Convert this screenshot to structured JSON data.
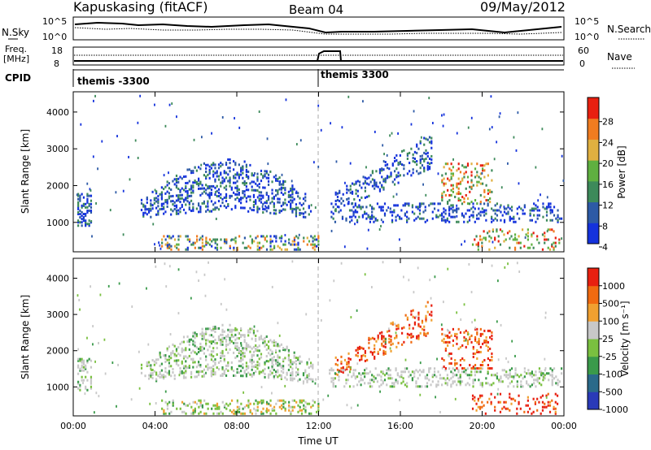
{
  "header": {
    "title": "Kapuskasing (fitACF)",
    "beam": "Beam 04",
    "date": "09/May/2012"
  },
  "status_panels": {
    "nsky_label": "N.Sky",
    "nsearch_label": "N.Search",
    "freq_label_1": "Freq.",
    "freq_label_2": "[MHz]",
    "nave_label": "Nave",
    "cpid_label": "CPID",
    "noise_left_ticks": [
      "10^5",
      "10^0"
    ],
    "noise_right_ticks": [
      "10^5",
      "10^0"
    ],
    "freq_left_ticks": [
      "18",
      "8"
    ],
    "nave_right_ticks": [
      "60",
      "0"
    ],
    "cpid_segments": [
      {
        "label": "themis -3300",
        "start_hour": 0.0
      },
      {
        "label": "themis 3300",
        "start_hour": 12.0
      }
    ]
  },
  "chart_data": [
    {
      "type": "heatmap",
      "title": "Power",
      "ylabel": "Slant Range [km]",
      "xlabel": "Time UT",
      "xlim_hours": [
        0,
        24
      ],
      "ylim": [
        200,
        4550
      ],
      "x_tick_labels": [
        "00:00",
        "04:00",
        "08:00",
        "12:00",
        "16:00",
        "20:00",
        "00:00"
      ],
      "y_tick_labels": [
        "1000",
        "2000",
        "3000",
        "4000"
      ],
      "colorbar_label": "Power [dB]",
      "colorbar_ticks": [
        "28",
        "24",
        "20",
        "16",
        "12",
        "8",
        "4"
      ],
      "colors": [
        "#1432dc",
        "#2d5aa6",
        "#3d8a5a",
        "#5fb040",
        "#e0b040",
        "#f07c20",
        "#e82010"
      ]
    },
    {
      "type": "heatmap",
      "title": "Velocity",
      "ylabel": "Slant Range [km]",
      "xlabel": "Time UT",
      "xlim_hours": [
        0,
        24
      ],
      "ylim": [
        200,
        4550
      ],
      "x_tick_labels": [
        "00:00",
        "04:00",
        "08:00",
        "12:00",
        "16:00",
        "20:00",
        "00:00"
      ],
      "y_tick_labels": [
        "1000",
        "2000",
        "3000",
        "4000"
      ],
      "colorbar_label": "Velocity [m s⁻¹]",
      "colorbar_ticks": [
        "1000",
        "500",
        "100",
        "25",
        "-25",
        "-100",
        "-500",
        "-1000"
      ],
      "colors": [
        "#2a3ab8",
        "#2a6a8a",
        "#3a9a4a",
        "#7ac040",
        "#c8c8c8",
        "#f0a030",
        "#f06a10",
        "#e82010"
      ]
    }
  ],
  "x_axis_title": "Time UT"
}
